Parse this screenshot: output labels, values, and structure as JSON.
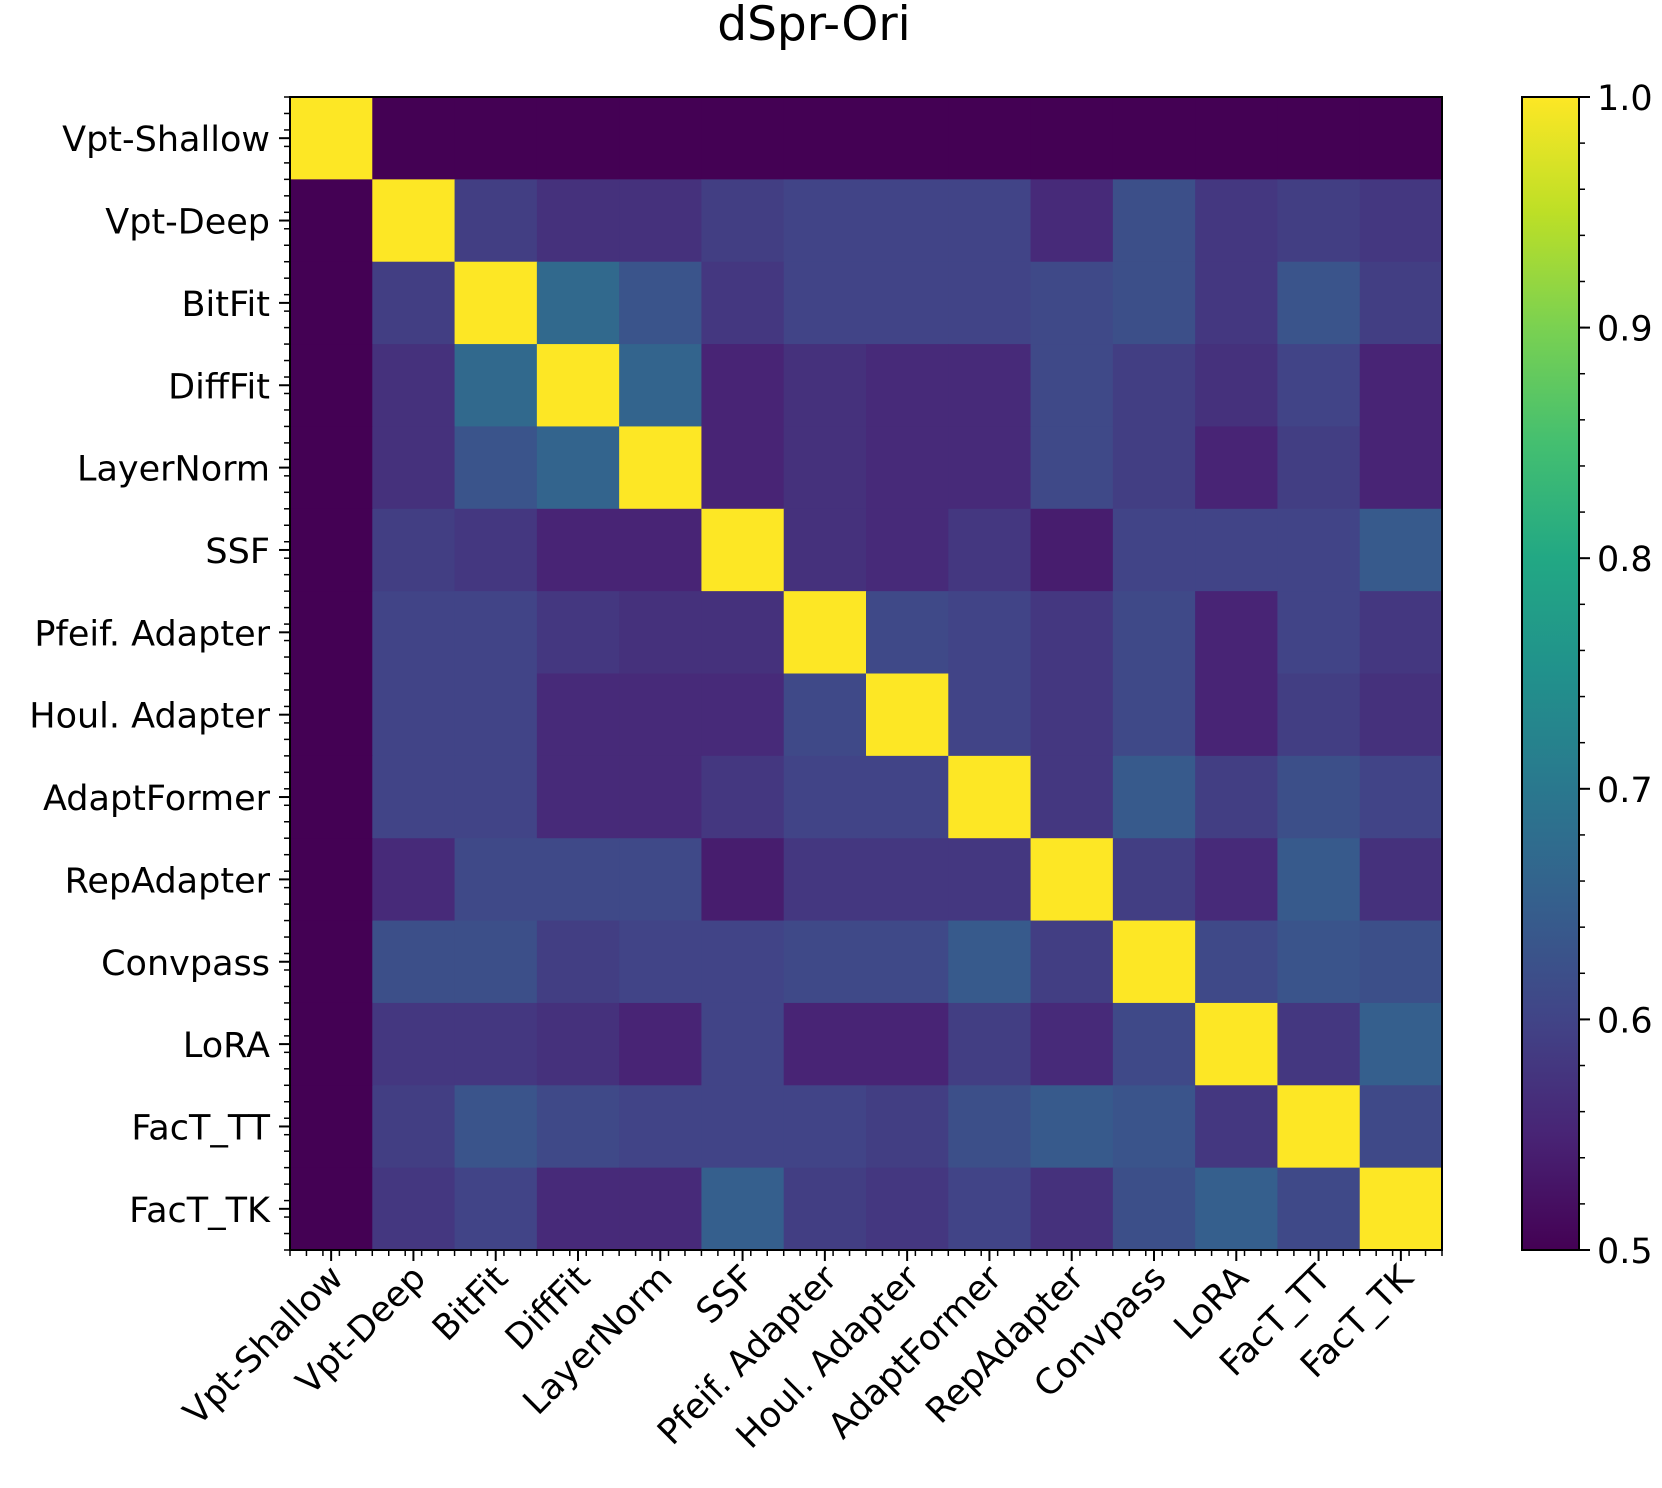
{
  "chart_data": {
    "type": "heatmap",
    "title": "dSpr-Ori",
    "xlabel": "",
    "ylabel": "",
    "labels": [
      "Vpt-Shallow",
      "Vpt-Deep",
      "BitFit",
      "DiffFit",
      "LayerNorm",
      "SSF",
      "Pfeif. Adapter",
      "Houl. Adapter",
      "AdaptFormer",
      "RepAdapter",
      "Convpass",
      "LoRA",
      "FacT_TT",
      "FacT_TK"
    ],
    "matrix": [
      [
        1.0,
        0.5,
        0.5,
        0.5,
        0.5,
        0.5,
        0.5,
        0.5,
        0.5,
        0.5,
        0.5,
        0.5,
        0.5,
        0.5
      ],
      [
        0.5,
        1.0,
        0.59,
        0.57,
        0.57,
        0.59,
        0.6,
        0.6,
        0.6,
        0.56,
        0.62,
        0.58,
        0.59,
        0.58
      ],
      [
        0.5,
        0.59,
        1.0,
        0.67,
        0.63,
        0.58,
        0.6,
        0.6,
        0.6,
        0.61,
        0.62,
        0.58,
        0.63,
        0.59
      ],
      [
        0.5,
        0.57,
        0.67,
        1.0,
        0.66,
        0.55,
        0.57,
        0.56,
        0.56,
        0.61,
        0.59,
        0.57,
        0.6,
        0.55
      ],
      [
        0.5,
        0.57,
        0.63,
        0.66,
        1.0,
        0.55,
        0.57,
        0.56,
        0.56,
        0.61,
        0.59,
        0.55,
        0.59,
        0.55
      ],
      [
        0.5,
        0.59,
        0.58,
        0.55,
        0.55,
        1.0,
        0.57,
        0.56,
        0.58,
        0.54,
        0.6,
        0.6,
        0.6,
        0.64
      ],
      [
        0.5,
        0.6,
        0.6,
        0.58,
        0.57,
        0.57,
        1.0,
        0.61,
        0.6,
        0.58,
        0.61,
        0.55,
        0.6,
        0.58
      ],
      [
        0.5,
        0.6,
        0.6,
        0.56,
        0.56,
        0.56,
        0.61,
        1.0,
        0.6,
        0.58,
        0.61,
        0.55,
        0.59,
        0.57
      ],
      [
        0.5,
        0.6,
        0.6,
        0.56,
        0.56,
        0.58,
        0.6,
        0.6,
        1.0,
        0.58,
        0.64,
        0.59,
        0.62,
        0.6
      ],
      [
        0.5,
        0.56,
        0.61,
        0.61,
        0.61,
        0.54,
        0.58,
        0.58,
        0.58,
        1.0,
        0.59,
        0.56,
        0.64,
        0.57
      ],
      [
        0.5,
        0.62,
        0.62,
        0.59,
        0.6,
        0.6,
        0.61,
        0.61,
        0.64,
        0.59,
        1.0,
        0.61,
        0.63,
        0.62
      ],
      [
        0.5,
        0.58,
        0.58,
        0.57,
        0.55,
        0.6,
        0.55,
        0.55,
        0.59,
        0.56,
        0.61,
        1.0,
        0.58,
        0.65
      ],
      [
        0.5,
        0.59,
        0.63,
        0.61,
        0.6,
        0.6,
        0.6,
        0.59,
        0.62,
        0.64,
        0.63,
        0.58,
        1.0,
        0.61
      ],
      [
        0.5,
        0.58,
        0.6,
        0.56,
        0.56,
        0.65,
        0.59,
        0.58,
        0.6,
        0.57,
        0.62,
        0.65,
        0.61,
        1.0
      ]
    ],
    "colormap": "viridis",
    "vmin": 0.5,
    "vmax": 1.0,
    "colorbar_ticks": [
      "0.5",
      "0.6",
      "0.7",
      "0.8",
      "0.9",
      "1.0"
    ],
    "legend_position": "right"
  }
}
